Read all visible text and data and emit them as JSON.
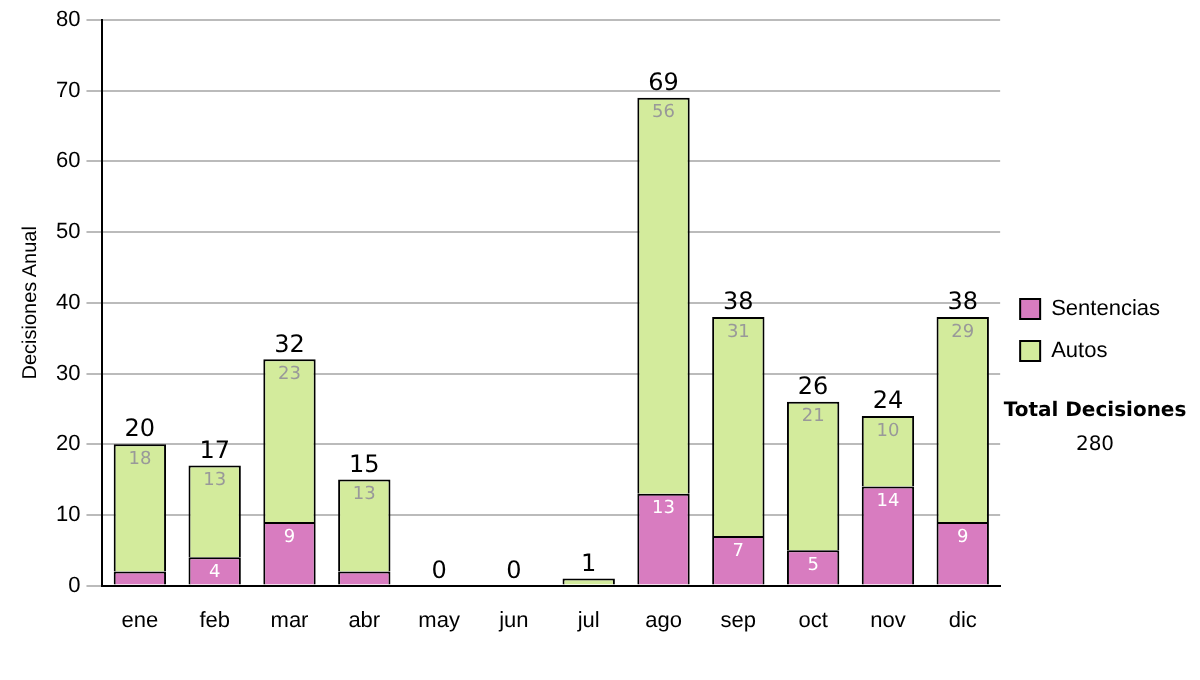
{
  "chart_data": {
    "type": "bar",
    "stacked": true,
    "ylabel": "Decisiones Anual",
    "categories": [
      "ene",
      "feb",
      "mar",
      "abr",
      "may",
      "jun",
      "jul",
      "ago",
      "sep",
      "oct",
      "nov",
      "dic"
    ],
    "series": [
      {
        "name": "Sentencias",
        "color": "#d87cc0",
        "values": [
          2,
          4,
          9,
          2,
          0,
          0,
          0,
          13,
          7,
          5,
          14,
          9
        ],
        "value_labels": [
          null,
          "4",
          "9",
          null,
          null,
          null,
          null,
          "13",
          "7",
          "5",
          "14",
          "9"
        ]
      },
      {
        "name": "Autos",
        "color": "#d3eb9c",
        "values": [
          18,
          13,
          23,
          13,
          0,
          0,
          1,
          56,
          31,
          21,
          10,
          29
        ],
        "value_labels": [
          "18",
          "13",
          "23",
          "13",
          null,
          null,
          null,
          "56",
          "31",
          "21",
          "10",
          "29"
        ]
      }
    ],
    "totals": [
      "20",
      "17",
      "32",
      "15",
      "0",
      "0",
      "1",
      "69",
      "38",
      "26",
      "24",
      "38"
    ],
    "ylim": [
      0,
      80
    ],
    "yticks": [
      0,
      10,
      20,
      30,
      40,
      50,
      60,
      70,
      80
    ],
    "grid": "y",
    "legend": "right",
    "annotations": [
      "Total Decisiones",
      "280"
    ]
  }
}
